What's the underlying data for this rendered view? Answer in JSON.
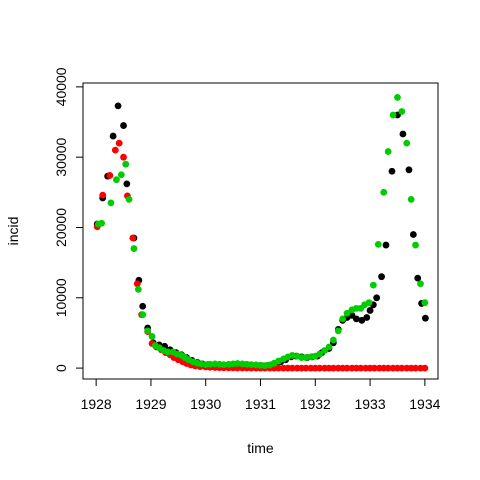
{
  "chart_data": {
    "type": "scatter",
    "title": "",
    "xlabel": "time",
    "ylabel": "incid",
    "xlim": [
      1927.76,
      1934.24
    ],
    "ylim": [
      -1550,
      40550
    ],
    "xticks": [
      1928,
      1929,
      1930,
      1931,
      1932,
      1933,
      1934
    ],
    "yticks": [
      0,
      10000,
      20000,
      30000,
      40000
    ],
    "grid": false,
    "legend": "none",
    "series": [
      {
        "color": "#000000",
        "points": [
          [
            1928.02,
            20500
          ],
          [
            1928.12,
            24200
          ],
          [
            1928.21,
            27300
          ],
          [
            1928.31,
            33000
          ],
          [
            1928.4,
            37300
          ],
          [
            1928.5,
            34500
          ],
          [
            1928.56,
            26200
          ],
          [
            1928.69,
            18500
          ],
          [
            1928.78,
            12500
          ],
          [
            1928.85,
            8800
          ],
          [
            1928.94,
            5700
          ],
          [
            1929.04,
            3600
          ],
          [
            1929.15,
            3300
          ],
          [
            1929.25,
            3100
          ],
          [
            1929.35,
            2600
          ],
          [
            1929.46,
            2200
          ],
          [
            1929.56,
            1900
          ],
          [
            1929.65,
            1500
          ],
          [
            1929.75,
            1100
          ],
          [
            1929.85,
            800
          ],
          [
            1929.94,
            600
          ],
          [
            1930.04,
            500
          ],
          [
            1930.15,
            450
          ],
          [
            1930.25,
            400
          ],
          [
            1930.35,
            400
          ],
          [
            1930.46,
            420
          ],
          [
            1930.56,
            450
          ],
          [
            1930.65,
            450
          ],
          [
            1930.75,
            420
          ],
          [
            1930.85,
            380
          ],
          [
            1930.94,
            350
          ],
          [
            1931.04,
            330
          ],
          [
            1931.12,
            350
          ],
          [
            1931.2,
            450
          ],
          [
            1931.29,
            700
          ],
          [
            1931.37,
            900
          ],
          [
            1931.46,
            1200
          ],
          [
            1931.56,
            1600
          ],
          [
            1931.65,
            1700
          ],
          [
            1931.75,
            1600
          ],
          [
            1931.85,
            1500
          ],
          [
            1931.94,
            1600
          ],
          [
            1932.04,
            1700
          ],
          [
            1932.12,
            2200
          ],
          [
            1932.25,
            2800
          ],
          [
            1932.33,
            3600
          ],
          [
            1932.42,
            5500
          ],
          [
            1932.5,
            6800
          ],
          [
            1932.58,
            7200
          ],
          [
            1932.67,
            7500
          ],
          [
            1932.75,
            7000
          ],
          [
            1932.85,
            6800
          ],
          [
            1932.94,
            7200
          ],
          [
            1933.0,
            8200
          ],
          [
            1933.06,
            9000
          ],
          [
            1933.12,
            10000
          ],
          [
            1933.21,
            13000
          ],
          [
            1933.29,
            17500
          ],
          [
            1933.4,
            28000
          ],
          [
            1933.5,
            36000
          ],
          [
            1933.6,
            33300
          ],
          [
            1933.71,
            28200
          ],
          [
            1933.79,
            19000
          ],
          [
            1933.87,
            12800
          ],
          [
            1933.94,
            9200
          ],
          [
            1934.01,
            7100
          ]
        ]
      },
      {
        "color": "#ff0000",
        "points": [
          [
            1928.02,
            20100
          ],
          [
            1928.12,
            24600
          ],
          [
            1928.25,
            27400
          ],
          [
            1928.35,
            31000
          ],
          [
            1928.42,
            32000
          ],
          [
            1928.5,
            30000
          ],
          [
            1928.57,
            24500
          ],
          [
            1928.67,
            18500
          ],
          [
            1928.75,
            12000
          ],
          [
            1928.83,
            7600
          ],
          [
            1928.94,
            5200
          ],
          [
            1929.02,
            3500
          ],
          [
            1929.1,
            3000
          ],
          [
            1929.19,
            2600
          ],
          [
            1929.27,
            2200
          ],
          [
            1929.35,
            1900
          ],
          [
            1929.42,
            1500
          ],
          [
            1929.5,
            1200
          ],
          [
            1929.58,
            900
          ],
          [
            1929.65,
            650
          ],
          [
            1929.73,
            450
          ],
          [
            1929.81,
            300
          ],
          [
            1929.9,
            220
          ],
          [
            1930.0,
            160
          ],
          [
            1930.08,
            120
          ],
          [
            1930.17,
            90
          ],
          [
            1930.25,
            70
          ],
          [
            1930.33,
            55
          ],
          [
            1930.42,
            40
          ],
          [
            1930.5,
            30
          ],
          [
            1930.58,
            20
          ],
          [
            1930.67,
            15
          ],
          [
            1930.75,
            10
          ],
          [
            1930.83,
            5
          ],
          [
            1930.92,
            0
          ],
          [
            1931.0,
            0
          ],
          [
            1931.08,
            0
          ],
          [
            1931.17,
            0
          ],
          [
            1931.25,
            0
          ],
          [
            1931.33,
            0
          ],
          [
            1931.42,
            0
          ],
          [
            1931.5,
            0
          ],
          [
            1931.58,
            0
          ],
          [
            1931.67,
            0
          ],
          [
            1931.75,
            0
          ],
          [
            1931.83,
            0
          ],
          [
            1931.92,
            0
          ],
          [
            1932.0,
            0
          ],
          [
            1932.08,
            0
          ],
          [
            1932.17,
            0
          ],
          [
            1932.25,
            0
          ],
          [
            1932.33,
            0
          ],
          [
            1932.42,
            0
          ],
          [
            1932.5,
            0
          ],
          [
            1932.58,
            0
          ],
          [
            1932.67,
            0
          ],
          [
            1932.75,
            0
          ],
          [
            1932.83,
            0
          ],
          [
            1932.92,
            0
          ],
          [
            1933.0,
            0
          ],
          [
            1933.08,
            0
          ],
          [
            1933.17,
            0
          ],
          [
            1933.25,
            0
          ],
          [
            1933.33,
            0
          ],
          [
            1933.42,
            0
          ],
          [
            1933.5,
            0
          ],
          [
            1933.58,
            0
          ],
          [
            1933.67,
            0
          ],
          [
            1933.75,
            0
          ],
          [
            1933.83,
            0
          ],
          [
            1933.92,
            0
          ],
          [
            1934.0,
            0
          ]
        ]
      },
      {
        "color": "#00cd00",
        "points": [
          [
            1928.04,
            20500
          ],
          [
            1928.1,
            20600
          ],
          [
            1928.27,
            23500
          ],
          [
            1928.37,
            26800
          ],
          [
            1928.46,
            27500
          ],
          [
            1928.54,
            29000
          ],
          [
            1928.6,
            24000
          ],
          [
            1928.69,
            17000
          ],
          [
            1928.77,
            11200
          ],
          [
            1928.85,
            7600
          ],
          [
            1928.94,
            5300
          ],
          [
            1929.02,
            4500
          ],
          [
            1929.08,
            3200
          ],
          [
            1929.15,
            2900
          ],
          [
            1929.23,
            2500
          ],
          [
            1929.31,
            2300
          ],
          [
            1929.4,
            2300
          ],
          [
            1929.48,
            2000
          ],
          [
            1929.56,
            1800
          ],
          [
            1929.62,
            1500
          ],
          [
            1929.69,
            1200
          ],
          [
            1929.77,
            900
          ],
          [
            1929.85,
            700
          ],
          [
            1929.92,
            600
          ],
          [
            1930.0,
            500
          ],
          [
            1930.08,
            550
          ],
          [
            1930.17,
            600
          ],
          [
            1930.25,
            550
          ],
          [
            1930.33,
            500
          ],
          [
            1930.42,
            550
          ],
          [
            1930.5,
            600
          ],
          [
            1930.58,
            650
          ],
          [
            1930.67,
            600
          ],
          [
            1930.75,
            550
          ],
          [
            1930.83,
            500
          ],
          [
            1930.92,
            450
          ],
          [
            1931.0,
            400
          ],
          [
            1931.08,
            350
          ],
          [
            1931.17,
            450
          ],
          [
            1931.25,
            700
          ],
          [
            1931.33,
            1000
          ],
          [
            1931.42,
            1300
          ],
          [
            1931.5,
            1600
          ],
          [
            1931.58,
            1800
          ],
          [
            1931.67,
            1700
          ],
          [
            1931.75,
            1500
          ],
          [
            1931.83,
            1500
          ],
          [
            1931.92,
            1600
          ],
          [
            1932.0,
            1700
          ],
          [
            1932.08,
            2000
          ],
          [
            1932.17,
            2500
          ],
          [
            1932.25,
            3000
          ],
          [
            1932.33,
            4000
          ],
          [
            1932.42,
            5300
          ],
          [
            1932.5,
            7000
          ],
          [
            1932.58,
            7800
          ],
          [
            1932.67,
            8300
          ],
          [
            1932.75,
            8500
          ],
          [
            1932.83,
            8500
          ],
          [
            1932.9,
            9000
          ],
          [
            1932.98,
            9300
          ],
          [
            1933.06,
            11800
          ],
          [
            1933.15,
            17600
          ],
          [
            1933.25,
            25000
          ],
          [
            1933.33,
            30800
          ],
          [
            1933.42,
            36000
          ],
          [
            1933.5,
            38500
          ],
          [
            1933.58,
            36500
          ],
          [
            1933.67,
            32000
          ],
          [
            1933.75,
            24000
          ],
          [
            1933.83,
            17500
          ],
          [
            1933.92,
            12000
          ],
          [
            1934.0,
            9300
          ]
        ]
      }
    ]
  }
}
